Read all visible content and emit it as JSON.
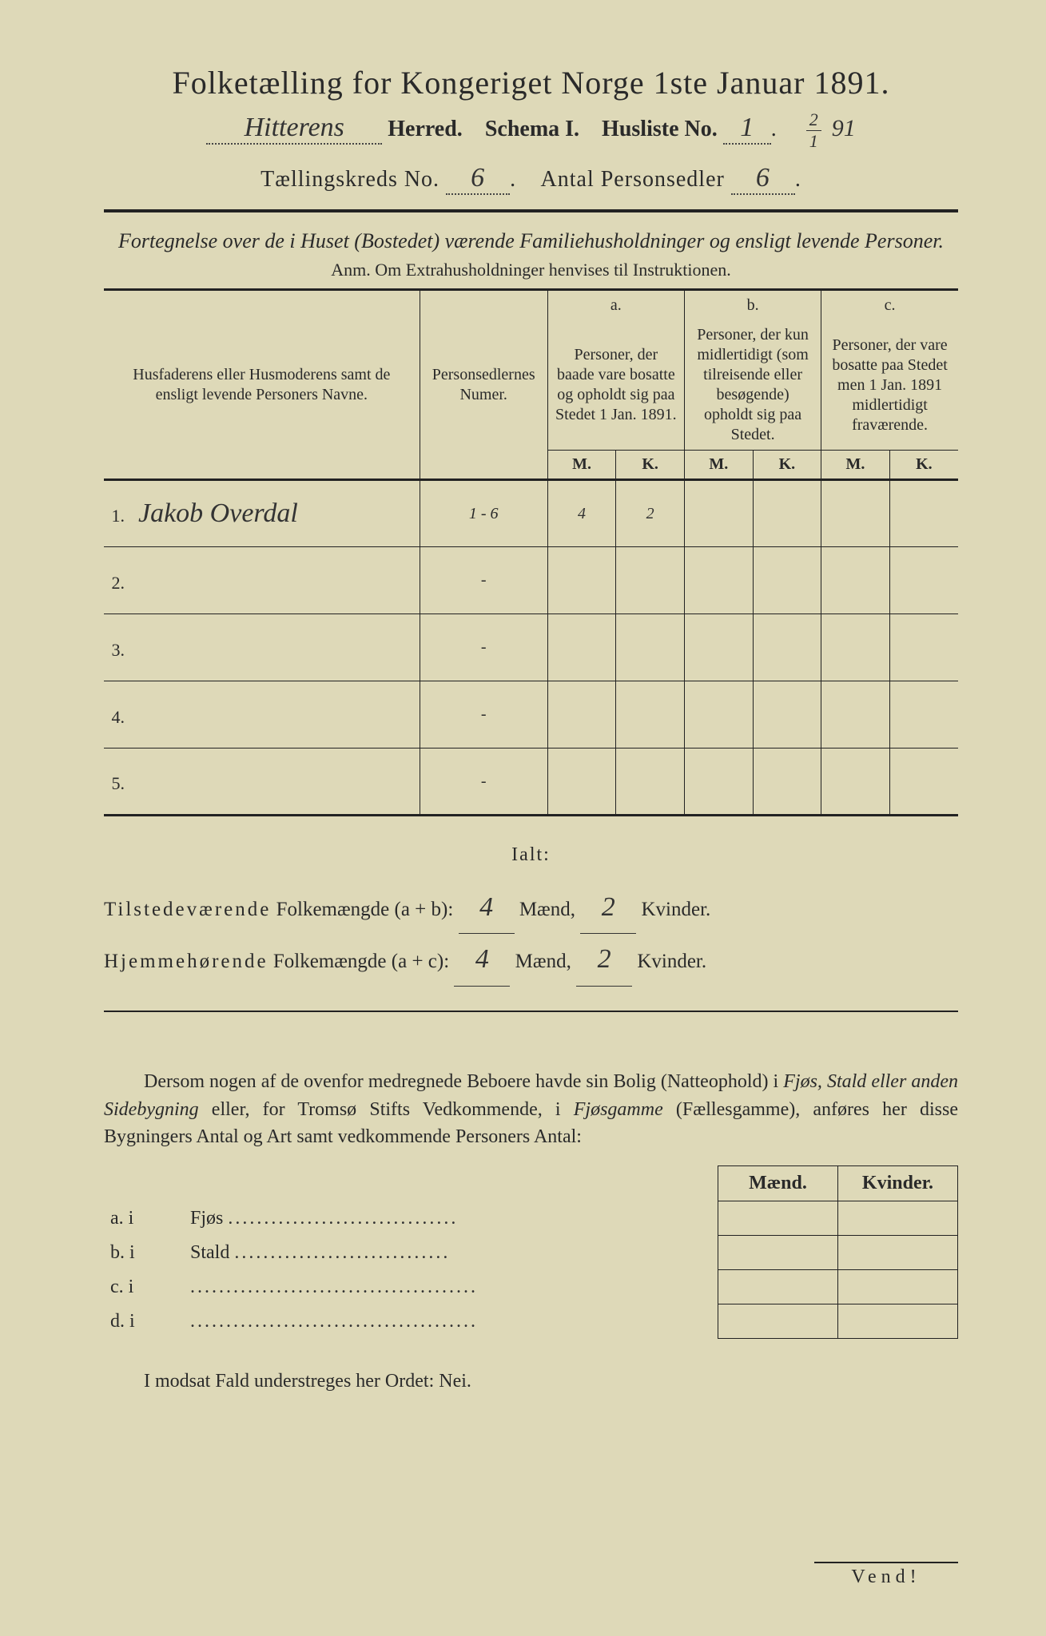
{
  "header": {
    "title": "Folketælling for Kongeriget Norge 1ste Januar 1891.",
    "herred_value": "Hitterens",
    "herred_label": "Herred.",
    "schema_label": "Schema I.",
    "husliste_label": "Husliste No.",
    "husliste_value": "1",
    "date_num": "2",
    "date_den": "1",
    "date_year": "91",
    "kreds_label": "Tællingskreds No.",
    "kreds_value": "6",
    "personsedler_label": "Antal Personsedler",
    "personsedler_value": "6"
  },
  "subtitle": "Fortegnelse over de i Huset (Bostedet) værende Familiehusholdninger og ensligt levende Personer.",
  "anm": "Anm.  Om Extrahusholdninger henvises til Instruktionen.",
  "table": {
    "col1": "Husfaderens eller Husmoderens samt de ensligt levende Personers Navne.",
    "col2": "Personsedlernes Numer.",
    "a_label": "a.",
    "a_text": "Personer, der baade vare bosatte og opholdt sig paa Stedet 1 Jan. 1891.",
    "b_label": "b.",
    "b_text": "Personer, der kun midlertidigt (som tilreisende eller besøgende) opholdt sig paa Stedet.",
    "c_label": "c.",
    "c_text": "Personer, der vare bosatte paa Stedet men 1 Jan. 1891 midlertidigt fraværende.",
    "m": "M.",
    "k": "K.",
    "rows": [
      {
        "n": "1.",
        "name": "Jakob Overdal",
        "sedler": "1 - 6",
        "a_m": "4",
        "a_k": "2",
        "b_m": "",
        "b_k": "",
        "c_m": "",
        "c_k": ""
      },
      {
        "n": "2.",
        "name": "",
        "sedler": "-",
        "a_m": "",
        "a_k": "",
        "b_m": "",
        "b_k": "",
        "c_m": "",
        "c_k": ""
      },
      {
        "n": "3.",
        "name": "",
        "sedler": "-",
        "a_m": "",
        "a_k": "",
        "b_m": "",
        "b_k": "",
        "c_m": "",
        "c_k": ""
      },
      {
        "n": "4.",
        "name": "",
        "sedler": "-",
        "a_m": "",
        "a_k": "",
        "b_m": "",
        "b_k": "",
        "c_m": "",
        "c_k": ""
      },
      {
        "n": "5.",
        "name": "",
        "sedler": "-",
        "a_m": "",
        "a_k": "",
        "b_m": "",
        "b_k": "",
        "c_m": "",
        "c_k": ""
      }
    ]
  },
  "ialt": {
    "title": "Ialt:",
    "line1_a": "Tilstedeværende",
    "line1_b": "Folkemængde (a + b):",
    "line2_a": "Hjemmehørende",
    "line2_b": "Folkemængde (a + c):",
    "val1_m": "4",
    "val1_k": "2",
    "val2_m": "4",
    "val2_k": "2",
    "maend": "Mænd,",
    "kvinder": "Kvinder."
  },
  "para": "Dersom nogen af de ovenfor medregnede Beboere havde sin Bolig (Natteophold) i Fjøs, Stald eller anden Sidebygning eller, for Tromsø Stifts Vedkommende, i Fjøsgamme (Fællesgamme), anføres her disse Bygningers Antal og Art samt vedkommende Personers Antal:",
  "bottom": {
    "maend": "Mænd.",
    "kvinder": "Kvinder.",
    "rows": [
      {
        "label_a": "a.  i",
        "label_b": "Fjøs"
      },
      {
        "label_a": "b.  i",
        "label_b": "Stald"
      },
      {
        "label_a": "c.  i",
        "label_b": ""
      },
      {
        "label_a": "d.  i",
        "label_b": ""
      }
    ]
  },
  "nei": "I modsat Fald understreges her Ordet: Nei.",
  "vend": "Vend!"
}
